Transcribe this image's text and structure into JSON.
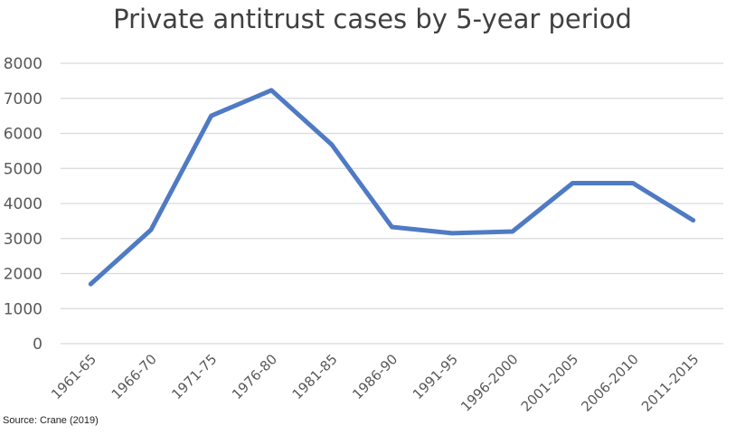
{
  "chart_data": {
    "type": "line",
    "title": "Private antitrust cases by 5-year period",
    "categories": [
      "1961-65",
      "1966-70",
      "1971-75",
      "1976-80",
      "1981-85",
      "1986-90",
      "1991-95",
      "1996-2000",
      "2001-2005",
      "2006-2010",
      "2011-2015"
    ],
    "series": [
      {
        "values": [
          1700,
          3250,
          6500,
          7230,
          5680,
          3330,
          3150,
          3200,
          4580,
          4580,
          3520
        ]
      }
    ],
    "ylim": [
      0,
      8000
    ],
    "yticks": [
      0,
      1000,
      2000,
      3000,
      4000,
      5000,
      6000,
      7000,
      8000
    ],
    "xlabel": "",
    "ylabel": "",
    "grid": true,
    "line_color": "#4f7ac4",
    "grid_color": "#d9d9d9"
  },
  "source": "Source: Crane (2019)"
}
